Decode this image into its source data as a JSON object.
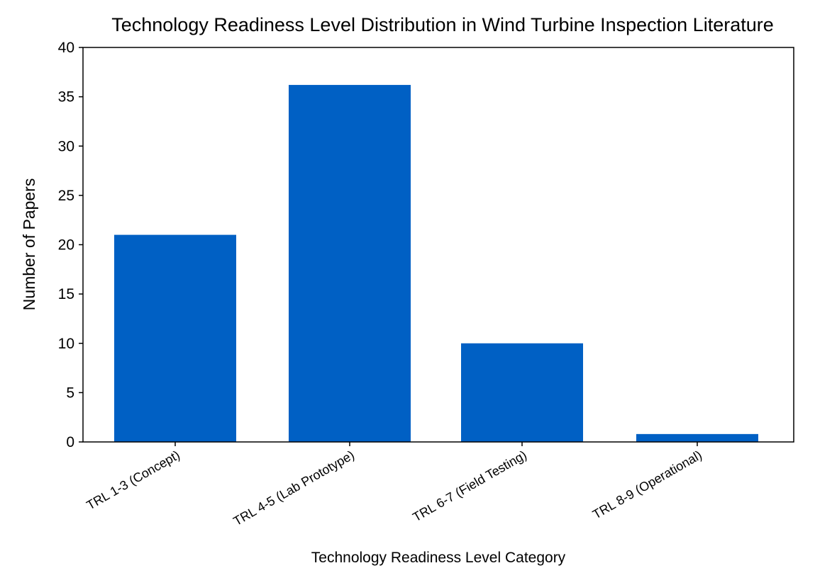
{
  "chart_data": {
    "type": "bar",
    "title": "Technology Readiness Level Distribution in Wind Turbine Inspection Literature",
    "xlabel": "Technology Readiness Level Category",
    "ylabel": "Number of Papers",
    "categories": [
      "TRL 1-3 (Concept)",
      "TRL 4-5 (Lab Prototype)",
      "TRL 6-7 (Field Testing)",
      "TRL 8-9 (Operational)"
    ],
    "values": [
      21,
      36.2,
      10,
      0.8
    ],
    "ylim": [
      0,
      40
    ],
    "yticks": [
      0,
      5,
      10,
      15,
      20,
      25,
      30,
      35,
      40
    ],
    "ytick_labels": [
      "0",
      "5",
      "10",
      "15",
      "20",
      "25",
      "30",
      "35",
      "40"
    ],
    "bar_color": "#0060C4",
    "grid": false,
    "legend": "none"
  }
}
